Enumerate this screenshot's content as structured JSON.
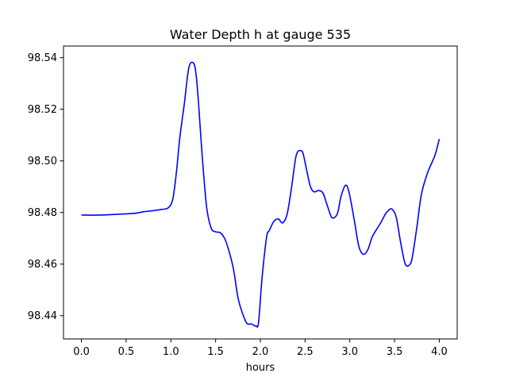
{
  "chart_data": {
    "type": "line",
    "title": "Water Depth h at gauge 535",
    "xlabel": "hours",
    "ylabel": "",
    "xlim": [
      -0.2,
      4.2
    ],
    "ylim": [
      98.431,
      98.5445
    ],
    "x_ticks": [
      0.0,
      0.5,
      1.0,
      1.5,
      2.0,
      2.5,
      3.0,
      3.5,
      4.0
    ],
    "x_tick_labels": [
      "0.0",
      "0.5",
      "1.0",
      "1.5",
      "2.0",
      "2.5",
      "3.0",
      "3.5",
      "4.0"
    ],
    "y_ticks": [
      98.44,
      98.46,
      98.48,
      98.5,
      98.52,
      98.54
    ],
    "y_tick_labels": [
      "98.44",
      "98.46",
      "98.48",
      "98.50",
      "98.52",
      "98.54"
    ],
    "grid": false,
    "legend": "none",
    "series": [
      {
        "color": "#0000ff",
        "x": [
          0.0,
          0.2,
          0.4,
          0.6,
          0.7,
          0.8,
          0.9,
          0.97,
          1.02,
          1.06,
          1.1,
          1.15,
          1.2,
          1.25,
          1.28,
          1.31,
          1.35,
          1.4,
          1.45,
          1.5,
          1.55,
          1.6,
          1.65,
          1.7,
          1.75,
          1.8,
          1.85,
          1.9,
          1.95,
          1.98,
          2.02,
          2.07,
          2.1,
          2.15,
          2.2,
          2.25,
          2.3,
          2.35,
          2.4,
          2.45,
          2.48,
          2.52,
          2.56,
          2.6,
          2.65,
          2.7,
          2.75,
          2.8,
          2.86,
          2.9,
          2.95,
          2.99,
          3.05,
          3.1,
          3.15,
          3.2,
          3.25,
          3.3,
          3.35,
          3.4,
          3.45,
          3.48,
          3.52,
          3.57,
          3.62,
          3.67,
          3.7,
          3.75,
          3.8,
          3.87,
          3.95,
          4.0
        ],
        "y": [
          98.479,
          98.479,
          98.4793,
          98.4797,
          98.4803,
          98.4807,
          98.4812,
          98.4818,
          98.485,
          98.495,
          98.509,
          98.522,
          98.536,
          98.538,
          98.534,
          98.522,
          98.502,
          98.482,
          98.474,
          98.4725,
          98.4722,
          98.47,
          98.465,
          98.458,
          98.447,
          98.441,
          98.437,
          98.4368,
          98.436,
          98.4375,
          98.455,
          98.4705,
          98.473,
          98.4765,
          98.4775,
          98.476,
          98.4795,
          98.49,
          98.502,
          98.504,
          98.5025,
          98.496,
          98.49,
          98.488,
          98.4885,
          98.4875,
          98.4825,
          98.478,
          98.4795,
          98.486,
          98.4905,
          98.488,
          98.477,
          98.467,
          98.4638,
          98.4655,
          98.4705,
          98.4735,
          98.4763,
          98.4795,
          98.4813,
          98.481,
          98.478,
          98.468,
          98.46,
          98.4598,
          98.463,
          98.4745,
          98.487,
          98.4955,
          98.502,
          98.5085
        ]
      }
    ]
  }
}
